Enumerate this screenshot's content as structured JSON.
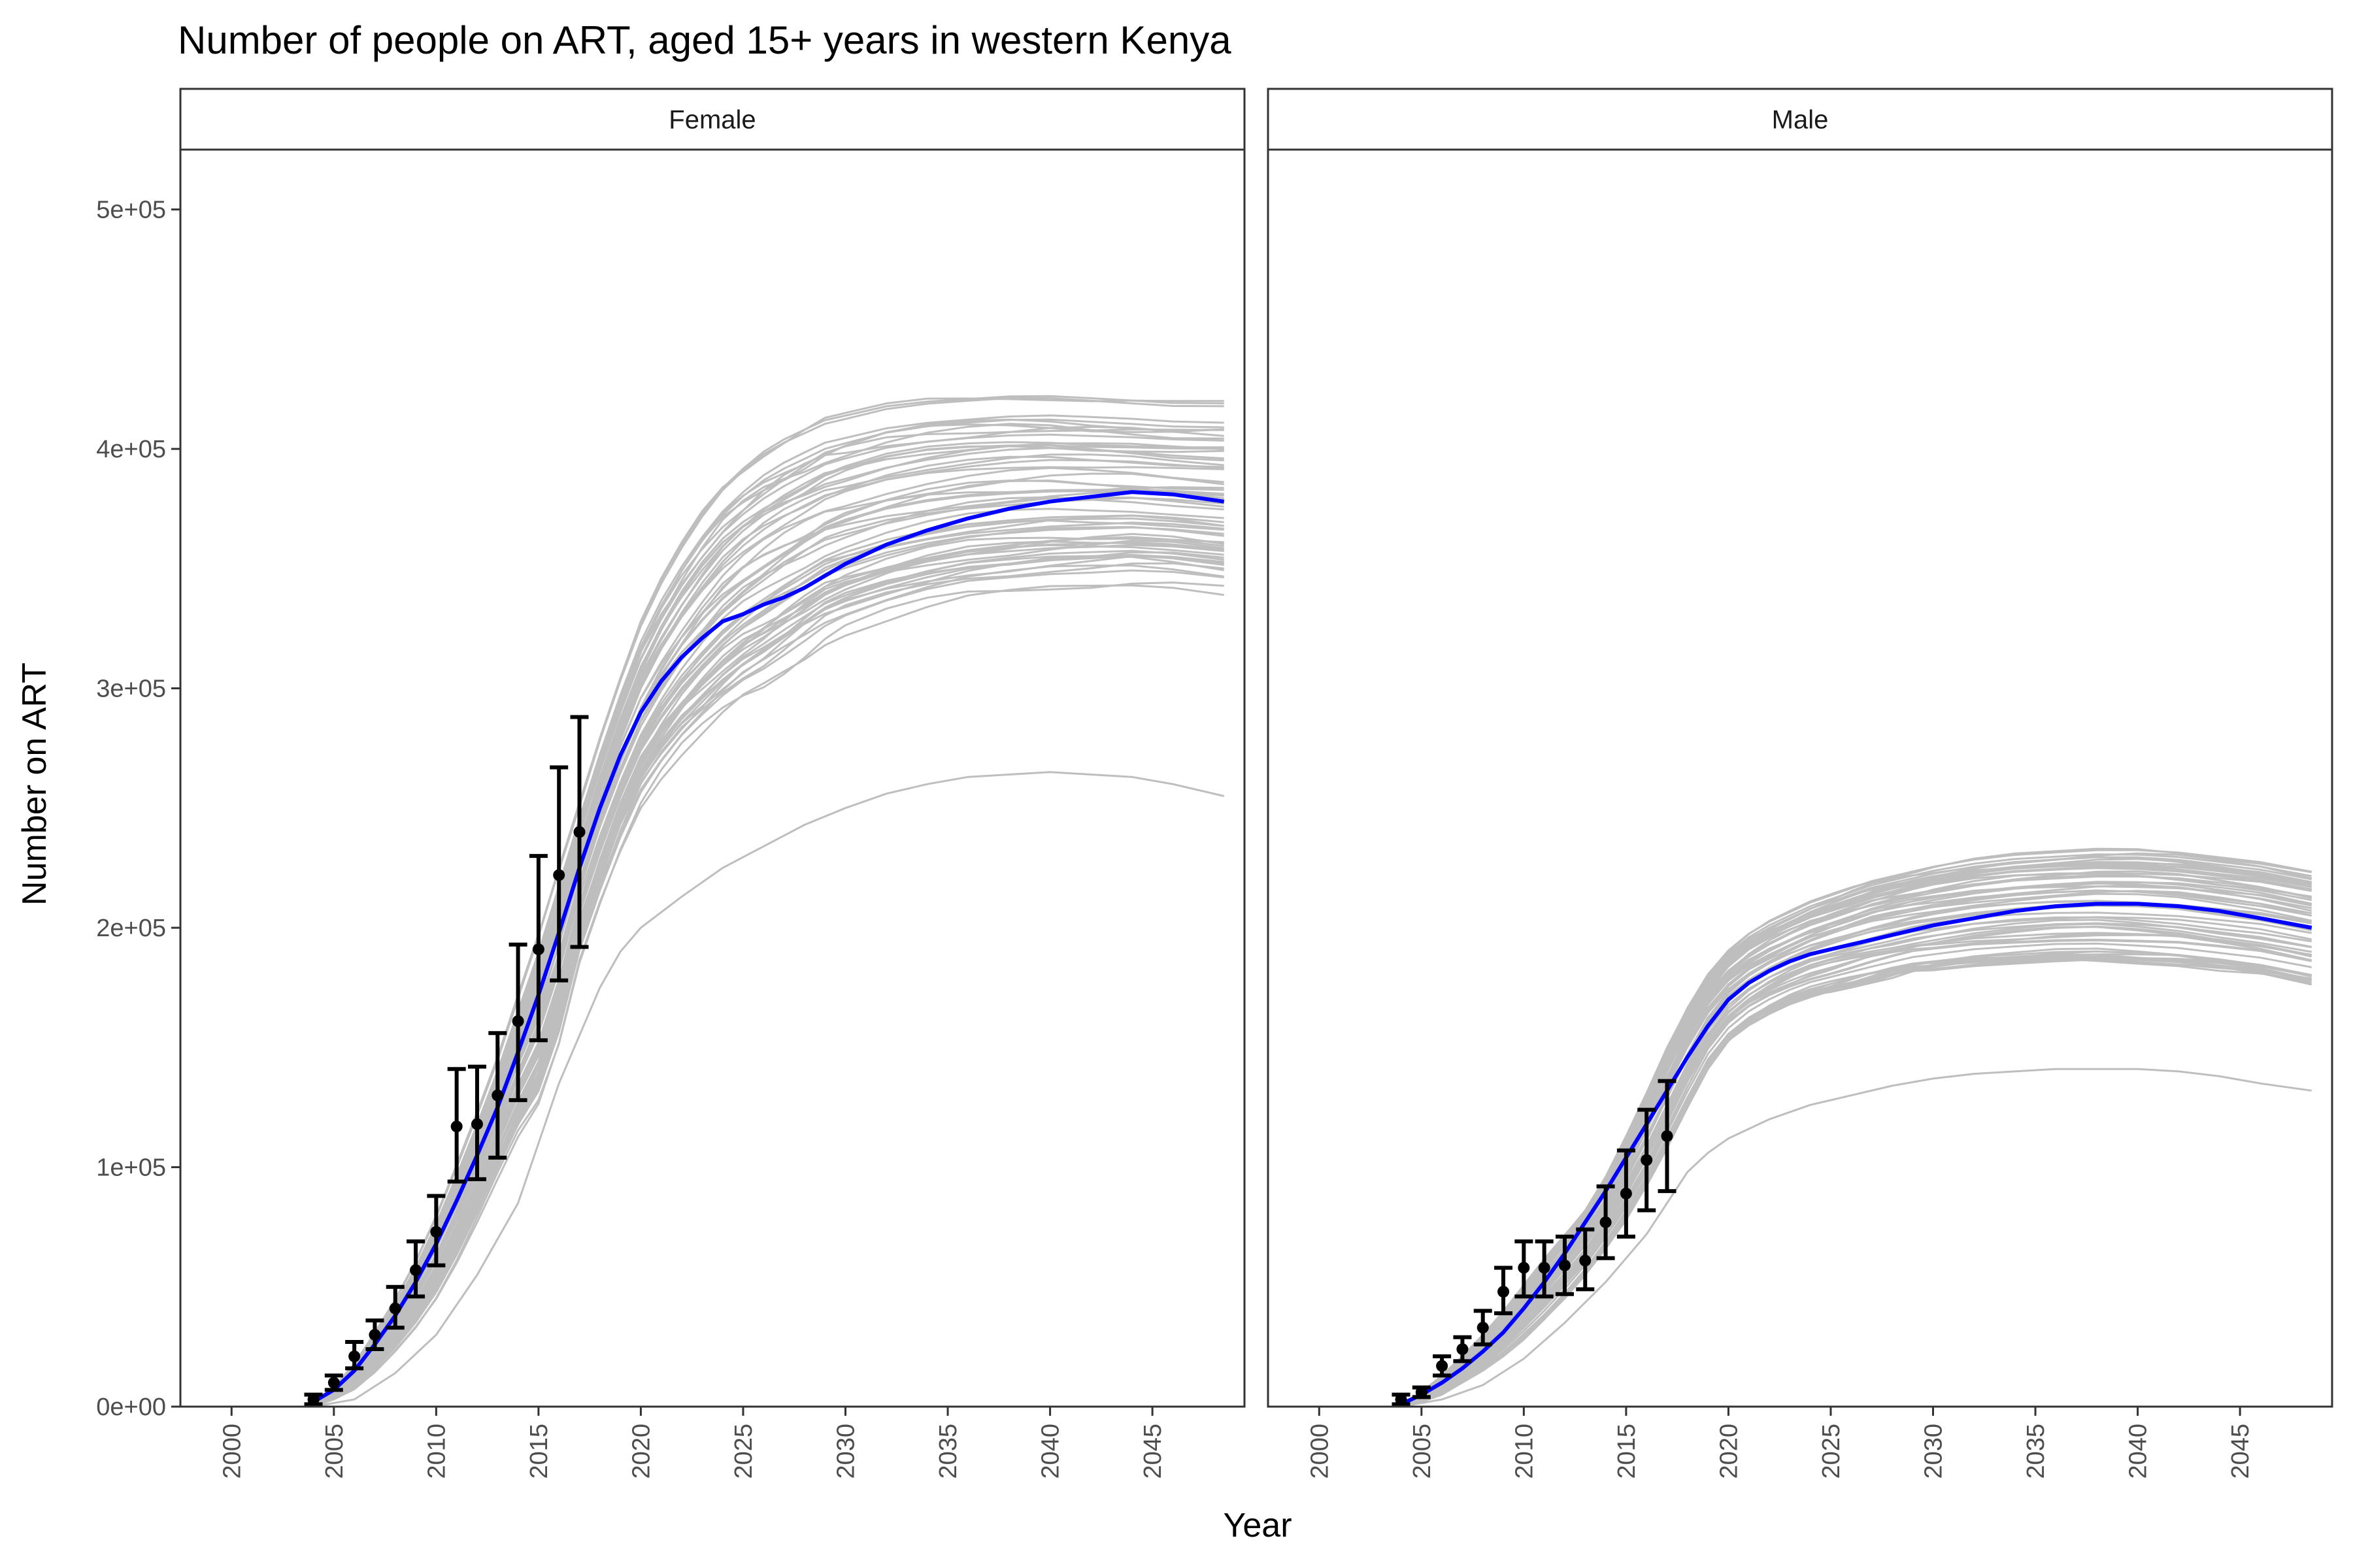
{
  "chart_data": {
    "type": "line",
    "title": "Number of people on ART, aged 15+ years in western Kenya",
    "xlabel": "Year",
    "ylabel": "Number on ART",
    "xlim": [
      1997.5,
      2049.5
    ],
    "ylim": [
      0,
      525000
    ],
    "x_ticks": [
      "2000",
      "2005",
      "2010",
      "2015",
      "2020",
      "2025",
      "2030",
      "2035",
      "2040",
      "2045"
    ],
    "y_ticks": [
      "0e+00",
      "1e+05",
      "2e+05",
      "3e+05",
      "4e+05",
      "5e+05"
    ],
    "grid": false,
    "legend": "none",
    "colors": {
      "simulations": "#bebebe",
      "mean": "#0000ff",
      "observed": "#000000",
      "strip_bg": "#ffffff"
    },
    "panels": [
      {
        "strip": "Female",
        "mean_series": {
          "x": [
            2004,
            2005,
            2006,
            2007,
            2008,
            2009,
            2010,
            2011,
            2012,
            2013,
            2014,
            2015,
            2016,
            2017,
            2018,
            2019,
            2020,
            2021,
            2022,
            2023,
            2024,
            2025,
            2026,
            2027,
            2028,
            2029,
            2030,
            2032,
            2034,
            2036,
            2038,
            2040,
            2042,
            2044,
            2046,
            2048.5
          ],
          "y": [
            2000,
            7000,
            15000,
            26000,
            38000,
            52000,
            68000,
            86000,
            105000,
            125000,
            148000,
            172000,
            198000,
            225000,
            250000,
            272000,
            290000,
            303000,
            313000,
            321000,
            328000,
            331000,
            335000,
            338000,
            342000,
            347000,
            352000,
            360000,
            366000,
            371000,
            375000,
            378000,
            380000,
            382000,
            381000,
            378000
          ]
        },
        "band": {
          "upper": [
            2000,
            8000,
            18000,
            31000,
            45000,
            61000,
            80000,
            101000,
            123000,
            146000,
            172000,
            198000,
            226000,
            253000,
            280000,
            305000,
            328000,
            346000,
            361000,
            374000,
            385000,
            393000,
            400000,
            405000,
            409000,
            413000,
            415000,
            419000,
            421000,
            422000,
            423000,
            423000,
            422000,
            421000,
            420000,
            420000
          ],
          "lower": [
            0,
            3000,
            7000,
            14000,
            23000,
            33000,
            45000,
            60000,
            77000,
            95000,
            112000,
            125000,
            150000,
            185000,
            210000,
            232000,
            250000,
            262000,
            272000,
            280000,
            288000,
            295000,
            300000,
            306000,
            312000,
            318000,
            322000,
            328000,
            333000,
            337000,
            339000,
            341000,
            342000,
            343000,
            342000,
            339000
          ]
        },
        "outlier_series": {
          "x": [
            2004,
            2006,
            2008,
            2010,
            2012,
            2014,
            2015,
            2016,
            2017,
            2018,
            2019,
            2020,
            2022,
            2024,
            2026,
            2028,
            2030,
            2032,
            2034,
            2036,
            2038,
            2040,
            2042,
            2044,
            2046,
            2048.5
          ],
          "y": [
            0,
            3000,
            14000,
            30000,
            55000,
            85000,
            110000,
            135000,
            155000,
            175000,
            190000,
            200000,
            213000,
            225000,
            234000,
            243000,
            250000,
            256000,
            260000,
            263000,
            264000,
            265000,
            264000,
            263000,
            260000,
            255000
          ]
        },
        "observed": [
          {
            "x": 2004,
            "y": 3000,
            "lo": 1000,
            "hi": 5000
          },
          {
            "x": 2005,
            "y": 10000,
            "lo": 7000,
            "hi": 13000
          },
          {
            "x": 2006,
            "y": 21000,
            "lo": 16000,
            "hi": 27000
          },
          {
            "x": 2007,
            "y": 30000,
            "lo": 24000,
            "hi": 36000
          },
          {
            "x": 2008,
            "y": 41000,
            "lo": 33000,
            "hi": 50000
          },
          {
            "x": 2009,
            "y": 57000,
            "lo": 46000,
            "hi": 69000
          },
          {
            "x": 2010,
            "y": 73000,
            "lo": 59000,
            "hi": 88000
          },
          {
            "x": 2011,
            "y": 117000,
            "lo": 94000,
            "hi": 141000
          },
          {
            "x": 2012,
            "y": 118000,
            "lo": 95000,
            "hi": 142000
          },
          {
            "x": 2013,
            "y": 130000,
            "lo": 104000,
            "hi": 156000
          },
          {
            "x": 2014,
            "y": 161000,
            "lo": 128000,
            "hi": 193000
          },
          {
            "x": 2015,
            "y": 191000,
            "lo": 153000,
            "hi": 230000
          },
          {
            "x": 2016,
            "y": 222000,
            "lo": 178000,
            "hi": 267000
          },
          {
            "x": 2017,
            "y": 240000,
            "lo": 192000,
            "hi": 288000
          }
        ]
      },
      {
        "strip": "Male",
        "mean_series": {
          "x": [
            2004,
            2005,
            2006,
            2007,
            2008,
            2009,
            2010,
            2011,
            2012,
            2013,
            2014,
            2015,
            2016,
            2017,
            2018,
            2019,
            2020,
            2021,
            2022,
            2023,
            2024,
            2025,
            2026,
            2027,
            2028,
            2029,
            2030,
            2032,
            2034,
            2036,
            2038,
            2040,
            2042,
            2044,
            2046,
            2048.5
          ],
          "y": [
            1000,
            5000,
            10000,
            16000,
            23000,
            31000,
            41000,
            52000,
            64000,
            77000,
            90000,
            104000,
            118000,
            132000,
            146000,
            159000,
            170000,
            177000,
            182000,
            186000,
            189000,
            191000,
            193000,
            195000,
            197000,
            199000,
            201000,
            204000,
            207000,
            209000,
            210000,
            210000,
            209000,
            207000,
            204000,
            200000
          ]
        },
        "band": {
          "upper": [
            1000,
            6000,
            13000,
            21000,
            30000,
            40000,
            51000,
            62000,
            72000,
            82000,
            96000,
            113000,
            131000,
            150000,
            167000,
            181000,
            191000,
            198000,
            203000,
            207000,
            211000,
            214000,
            217000,
            220000,
            222000,
            224000,
            226000,
            229000,
            231000,
            232000,
            233000,
            233000,
            232000,
            230000,
            228000,
            224000
          ],
          "lower": [
            0,
            2000,
            5000,
            10000,
            15000,
            21000,
            28000,
            36000,
            45000,
            55000,
            66000,
            78000,
            92000,
            108000,
            125000,
            141000,
            152000,
            159000,
            164000,
            168000,
            171000,
            173000,
            175000,
            177000,
            179000,
            181000,
            182000,
            184000,
            185000,
            186000,
            186000,
            185000,
            184000,
            182000,
            180000,
            176000
          ]
        },
        "outlier_series": {
          "x": [
            2004,
            2006,
            2008,
            2010,
            2012,
            2014,
            2015,
            2016,
            2017,
            2018,
            2019,
            2020,
            2022,
            2024,
            2026,
            2028,
            2030,
            2032,
            2034,
            2036,
            2038,
            2040,
            2042,
            2044,
            2046,
            2048.5
          ],
          "y": [
            0,
            3000,
            9000,
            20000,
            35000,
            52000,
            62000,
            72000,
            85000,
            98000,
            106000,
            112000,
            120000,
            126000,
            130000,
            134000,
            137000,
            139000,
            140000,
            141000,
            141000,
            141000,
            140000,
            138000,
            135000,
            132000
          ]
        },
        "observed": [
          {
            "x": 2004,
            "y": 3000,
            "lo": 1000,
            "hi": 5000
          },
          {
            "x": 2005,
            "y": 6000,
            "lo": 4000,
            "hi": 8000
          },
          {
            "x": 2006,
            "y": 17000,
            "lo": 13000,
            "hi": 21000
          },
          {
            "x": 2007,
            "y": 24000,
            "lo": 19000,
            "hi": 29000
          },
          {
            "x": 2008,
            "y": 33000,
            "lo": 26000,
            "hi": 40000
          },
          {
            "x": 2009,
            "y": 48000,
            "lo": 39000,
            "hi": 58000
          },
          {
            "x": 2010,
            "y": 58000,
            "lo": 46000,
            "hi": 69000
          },
          {
            "x": 2011,
            "y": 58000,
            "lo": 46000,
            "hi": 69000
          },
          {
            "x": 2012,
            "y": 59000,
            "lo": 47000,
            "hi": 71000
          },
          {
            "x": 2013,
            "y": 61000,
            "lo": 49000,
            "hi": 74000
          },
          {
            "x": 2014,
            "y": 77000,
            "lo": 62000,
            "hi": 92000
          },
          {
            "x": 2015,
            "y": 89000,
            "lo": 71000,
            "hi": 107000
          },
          {
            "x": 2016,
            "y": 103000,
            "lo": 82000,
            "hi": 124000
          },
          {
            "x": 2017,
            "y": 113000,
            "lo": 90000,
            "hi": 136000
          }
        ]
      }
    ]
  }
}
